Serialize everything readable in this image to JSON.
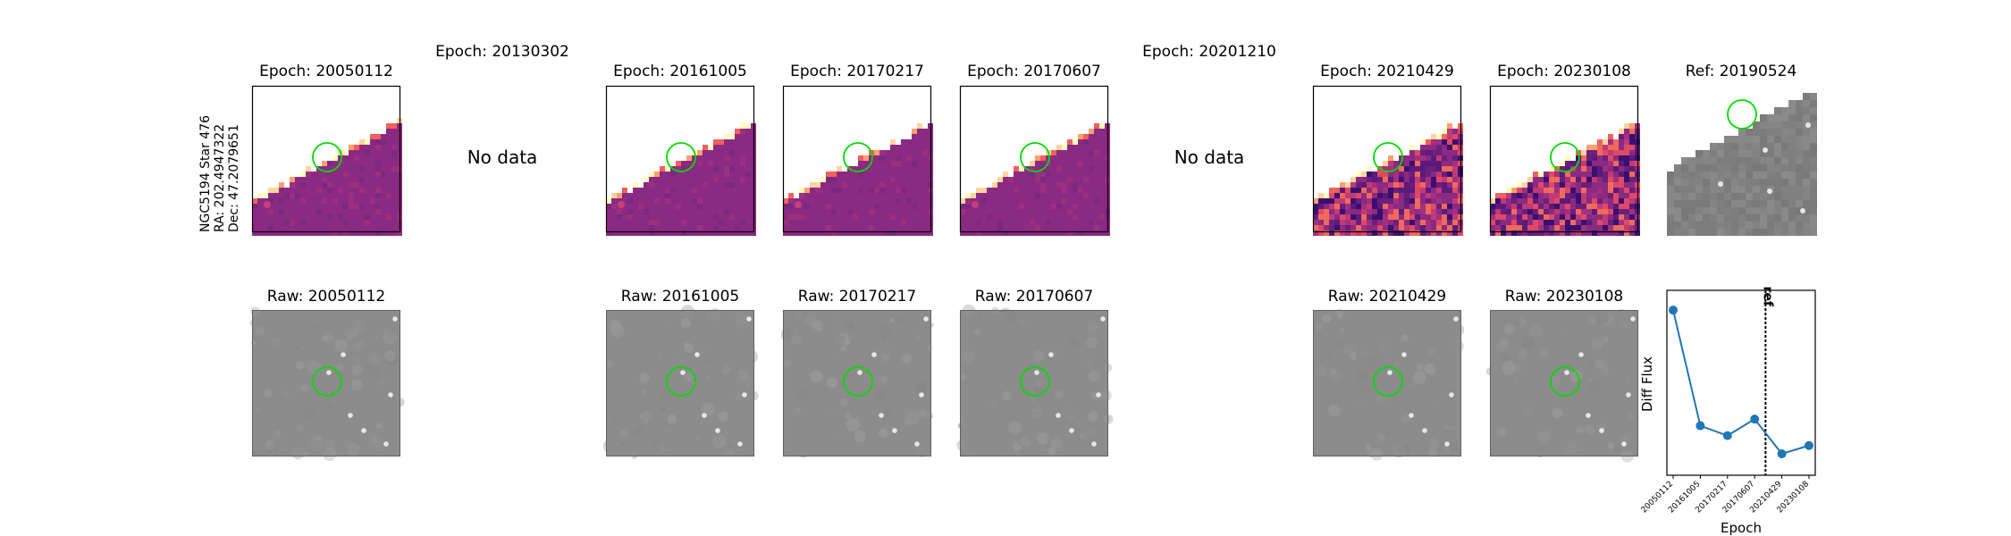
{
  "star_info": {
    "line1": "NGC5194 Star 476",
    "line2": "RA: 202.4947322",
    "line3": "Dec: 47.2079651"
  },
  "diff_row": [
    {
      "title": "Epoch: 20050112",
      "has_data": true,
      "style": "diff-smooth"
    },
    {
      "title": "Epoch: 20130302",
      "has_data": false,
      "nodata_label": "No data"
    },
    {
      "title": "Epoch: 20161005",
      "has_data": true,
      "style": "diff-smooth"
    },
    {
      "title": "Epoch: 20170217",
      "has_data": true,
      "style": "diff-smooth"
    },
    {
      "title": "Epoch: 20170607",
      "has_data": true,
      "style": "diff-smooth"
    },
    {
      "title": "Epoch: 20201210",
      "has_data": false,
      "nodata_label": "No data"
    },
    {
      "title": "Epoch: 20210429",
      "has_data": true,
      "style": "diff-noisy"
    },
    {
      "title": "Epoch: 20230108",
      "has_data": true,
      "style": "diff-noisy"
    },
    {
      "title": "Ref: 20190524",
      "has_data": true,
      "style": "ref"
    }
  ],
  "raw_row": [
    {
      "title": "Raw: 20050112"
    },
    {
      "title": "Raw: 20161005"
    },
    {
      "title": "Raw: 20170217"
    },
    {
      "title": "Raw: 20170607"
    },
    {
      "title": "Raw: 20210429"
    },
    {
      "title": "Raw: 20230108"
    }
  ],
  "chart_data": {
    "type": "line",
    "xlabel": "Epoch",
    "ylabel": "Diff Flux",
    "categories": [
      "20050112",
      "20161005",
      "20170217",
      "20170607",
      "20210429",
      "20230108"
    ],
    "values": [
      1.0,
      0.3,
      0.24,
      0.34,
      0.13,
      0.18
    ],
    "ylim": [
      0.0,
      1.12
    ],
    "ref_line": {
      "label": "ref",
      "position": 3.4
    },
    "colors": {
      "line": "#1f77b4"
    }
  },
  "colors": {
    "circle": "#00dd00",
    "diff_fill": "#8b2a82",
    "raw_bg": "#8c8c8c"
  }
}
